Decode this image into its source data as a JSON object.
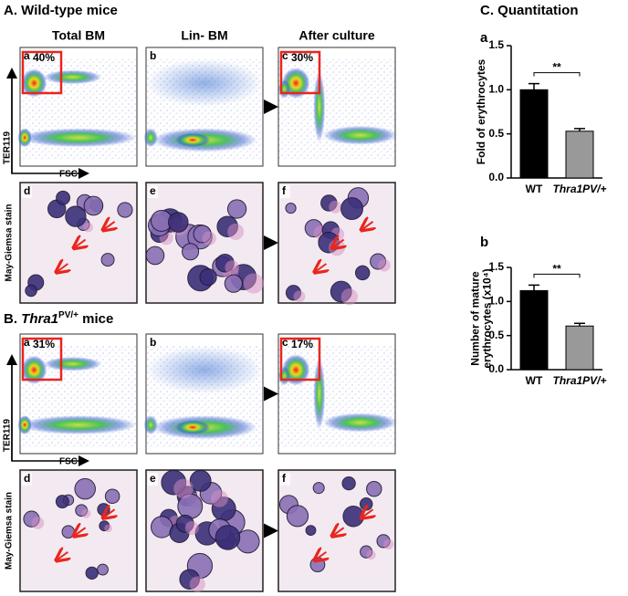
{
  "section_a": {
    "title": "A. Wild-type mice",
    "flow": [
      {
        "letter": "a",
        "percent": "40%"
      },
      {
        "letter": "b"
      },
      {
        "letter": "c",
        "percent": "30%"
      }
    ],
    "stain": [
      "d",
      "e",
      "f"
    ]
  },
  "section_b": {
    "title": [
      "B.",
      "Thra1",
      "PV/+",
      "mice"
    ],
    "flow": [
      {
        "letter": "a",
        "percent": "31%"
      },
      {
        "letter": "b"
      },
      {
        "letter": "c",
        "percent": "17%"
      }
    ],
    "stain": [
      "d",
      "e",
      "f"
    ]
  },
  "columns": [
    "Total BM",
    "Lin- BM",
    "After culture"
  ],
  "axis_labels": {
    "y": "TER119",
    "x": "FSC"
  },
  "stain_label": "May-Giemsa stain",
  "section_c": {
    "title": "C. Quantitation"
  },
  "chart_data": [
    {
      "type": "bar",
      "label": "a",
      "ylabel": [
        "Fold of erythrocytes"
      ],
      "categories": [
        "WT",
        "Thra1PV/+"
      ],
      "values": [
        1.0,
        0.53
      ],
      "errors": [
        0.07,
        0.03
      ],
      "colors": [
        "#000000",
        "#999999"
      ],
      "ylim": [
        0,
        1.5
      ],
      "yticks": [
        {
          "value": 0,
          "label": "0.0"
        },
        {
          "value": 0.5,
          "label": "0.5"
        },
        {
          "value": 1,
          "label": "1.0"
        },
        {
          "value": 1.5,
          "label": "1.5"
        }
      ],
      "annotation": "**"
    },
    {
      "type": "bar",
      "label": "b",
      "ylabel": [
        "Number of mature",
        "erythrocytes (x10⁴)"
      ],
      "categories": [
        "WT",
        "Thra1PV/+"
      ],
      "values": [
        1.16,
        0.64
      ],
      "errors": [
        0.08,
        0.04
      ],
      "colors": [
        "#000000",
        "#999999"
      ],
      "ylim": [
        0,
        1.5
      ],
      "yticks": [
        {
          "value": 0,
          "label": "0.0"
        },
        {
          "value": 0.5,
          "label": "0.5"
        },
        {
          "value": 1,
          "label": "1.0"
        },
        {
          "value": 1.5,
          "label": "1.5"
        }
      ],
      "annotation": "**"
    }
  ]
}
